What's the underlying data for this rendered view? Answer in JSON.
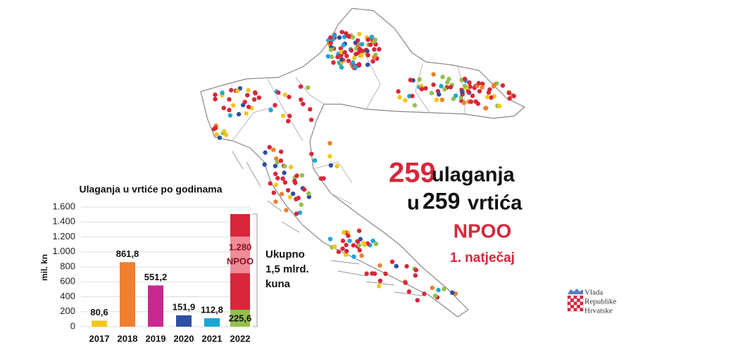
{
  "chart_data": {
    "type": "bar",
    "stacked": true,
    "title": "Ulaganja u vrtiće po godinama",
    "y_label": "mil. kn",
    "categories": [
      "2017",
      "2018",
      "2019",
      "2020",
      "2021",
      "2022"
    ],
    "series": [
      {
        "values": [
          80.6,
          861.8,
          551.2,
          151.9,
          112.8,
          225.6
        ],
        "value_labels": [
          "80,6",
          "861,8",
          "551,2",
          "151,9",
          "112,8",
          "225,6"
        ],
        "colors": [
          "#f5c518",
          "#f07f2e",
          "#c8288f",
          "#2e4fa3",
          "#1aa7d6",
          "#92c04a"
        ]
      },
      {
        "name": "NPOO",
        "values": [
          null,
          null,
          null,
          null,
          null,
          1280
        ],
        "value_labels": [
          null,
          null,
          null,
          null,
          null,
          "1.280"
        ],
        "color": "#d9263a"
      }
    ],
    "ylim": [
      0,
      1600
    ],
    "yticks": [
      0,
      200,
      400,
      600,
      800,
      {
        "value": 1000,
        "label": "1.000"
      },
      {
        "value": 1200,
        "label": "1.200"
      },
      {
        "value": 1400,
        "label": "1.400"
      },
      {
        "value": 1600,
        "label": "1.600"
      }
    ],
    "grid": true,
    "annotation_lines": [
      "Ukupno",
      "1,5 mlrd.",
      "kuna"
    ]
  },
  "headline": {
    "count1": "259",
    "word1": "ulaganja",
    "prefix2": "u",
    "count2": "259",
    "word2": "vrtića",
    "program": "NPOO",
    "round": "1. natječaj"
  },
  "logo": {
    "lines": [
      "Vlada",
      "Republike",
      "Hrvatske"
    ]
  }
}
